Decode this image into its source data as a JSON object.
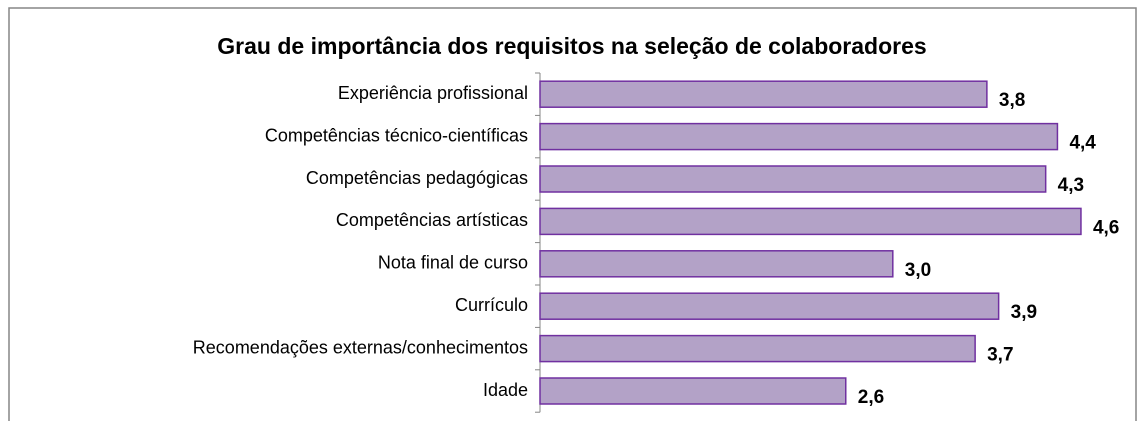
{
  "chart_data": {
    "type": "bar",
    "orientation": "horizontal",
    "title": "Grau de importância dos requisitos na seleção de colaboradores",
    "categories": [
      "Experiência profissional",
      "Competências técnico-científicas",
      "Competências pedagógicas",
      "Competências artísticas",
      "Nota final de curso",
      "Currículo",
      "Recomendações externas/conhecimentos",
      "Idade"
    ],
    "values": [
      3.8,
      4.4,
      4.3,
      4.6,
      3.0,
      3.9,
      3.7,
      2.6
    ],
    "value_labels": [
      "3,8",
      "4,4",
      "4,3",
      "4,6",
      "3,0",
      "3,9",
      "3,7",
      "2,6"
    ],
    "color": "#b3a2c7",
    "edge_color": "#7030a0"
  }
}
